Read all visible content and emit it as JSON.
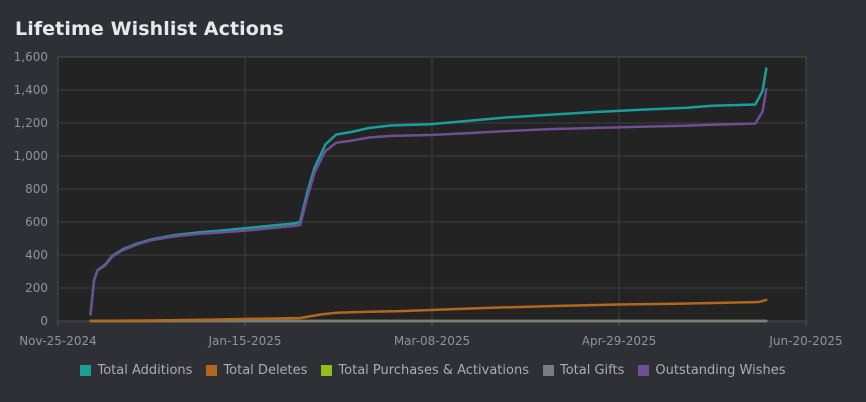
{
  "title": "Lifetime Wishlist Actions",
  "chart_data": {
    "type": "line",
    "title": "Lifetime Wishlist Actions",
    "xlabel": "",
    "ylabel": "",
    "x_type": "date",
    "xlim": [
      "2024-11-25",
      "2025-06-20"
    ],
    "ylim": [
      0,
      1600
    ],
    "x_ticks": [
      "Nov-25-2024",
      "Jan-15-2025",
      "Mar-08-2025",
      "Apr-29-2025",
      "Jun-20-2025"
    ],
    "y_ticks": [
      "0",
      "200",
      "400",
      "600",
      "800",
      "1,000",
      "1,200",
      "1,400",
      "1,600"
    ],
    "grid": true,
    "legend_position": "bottom",
    "series": [
      {
        "name": "Total Additions",
        "color": "#1a9e9a",
        "points": [
          [
            "2024-12-04",
            40
          ],
          [
            "2024-12-05",
            250
          ],
          [
            "2024-12-06",
            310
          ],
          [
            "2024-12-08",
            340
          ],
          [
            "2024-12-10",
            395
          ],
          [
            "2024-12-13",
            435
          ],
          [
            "2024-12-17",
            470
          ],
          [
            "2024-12-21",
            495
          ],
          [
            "2024-12-27",
            520
          ],
          [
            "2025-01-03",
            537
          ],
          [
            "2025-01-10",
            550
          ],
          [
            "2025-01-17",
            565
          ],
          [
            "2025-01-24",
            580
          ],
          [
            "2025-01-29",
            590
          ],
          [
            "2025-01-31",
            600
          ],
          [
            "2025-02-02",
            780
          ],
          [
            "2025-02-04",
            930
          ],
          [
            "2025-02-07",
            1070
          ],
          [
            "2025-02-10",
            1130
          ],
          [
            "2025-02-14",
            1145
          ],
          [
            "2025-02-19",
            1170
          ],
          [
            "2025-02-25",
            1185
          ],
          [
            "2025-03-08",
            1193
          ],
          [
            "2025-03-18",
            1212
          ],
          [
            "2025-03-28",
            1232
          ],
          [
            "2025-04-10",
            1250
          ],
          [
            "2025-04-22",
            1266
          ],
          [
            "2025-05-05",
            1280
          ],
          [
            "2025-05-18",
            1292
          ],
          [
            "2025-05-25",
            1305
          ],
          [
            "2025-06-06",
            1312
          ],
          [
            "2025-06-08",
            1395
          ],
          [
            "2025-06-09",
            1530
          ]
        ]
      },
      {
        "name": "Total Deletes",
        "color": "#b3671d",
        "points": [
          [
            "2024-12-04",
            0
          ],
          [
            "2024-12-20",
            3
          ],
          [
            "2025-01-05",
            8
          ],
          [
            "2025-01-20",
            14
          ],
          [
            "2025-01-31",
            18
          ],
          [
            "2025-02-06",
            40
          ],
          [
            "2025-02-10",
            50
          ],
          [
            "2025-02-18",
            55
          ],
          [
            "2025-02-28",
            60
          ],
          [
            "2025-03-10",
            68
          ],
          [
            "2025-03-25",
            80
          ],
          [
            "2025-04-10",
            90
          ],
          [
            "2025-04-29",
            100
          ],
          [
            "2025-05-15",
            105
          ],
          [
            "2025-06-01",
            112
          ],
          [
            "2025-06-07",
            115
          ],
          [
            "2025-06-09",
            128
          ]
        ]
      },
      {
        "name": "Total Purchases & Activations",
        "color": "#8fbf1a",
        "points": [
          [
            "2024-12-04",
            0
          ],
          [
            "2025-06-09",
            0
          ]
        ]
      },
      {
        "name": "Total Gifts",
        "color": "#7a7d80",
        "points": [
          [
            "2024-12-04",
            0
          ],
          [
            "2025-06-09",
            0
          ]
        ]
      },
      {
        "name": "Outstanding Wishes",
        "color": "#6e4f94",
        "points": [
          [
            "2024-12-04",
            40
          ],
          [
            "2024-12-05",
            250
          ],
          [
            "2024-12-06",
            308
          ],
          [
            "2024-12-08",
            336
          ],
          [
            "2024-12-10",
            390
          ],
          [
            "2024-12-13",
            430
          ],
          [
            "2024-12-17",
            465
          ],
          [
            "2024-12-21",
            490
          ],
          [
            "2024-12-27",
            512
          ],
          [
            "2025-01-03",
            528
          ],
          [
            "2025-01-10",
            538
          ],
          [
            "2025-01-17",
            550
          ],
          [
            "2025-01-24",
            565
          ],
          [
            "2025-01-29",
            575
          ],
          [
            "2025-01-31",
            582
          ],
          [
            "2025-02-02",
            750
          ],
          [
            "2025-02-04",
            900
          ],
          [
            "2025-02-07",
            1030
          ],
          [
            "2025-02-10",
            1080
          ],
          [
            "2025-02-14",
            1092
          ],
          [
            "2025-02-19",
            1112
          ],
          [
            "2025-02-25",
            1122
          ],
          [
            "2025-03-08",
            1127
          ],
          [
            "2025-03-18",
            1138
          ],
          [
            "2025-03-28",
            1150
          ],
          [
            "2025-04-10",
            1163
          ],
          [
            "2025-04-22",
            1170
          ],
          [
            "2025-05-05",
            1177
          ],
          [
            "2025-05-18",
            1184
          ],
          [
            "2025-05-25",
            1190
          ],
          [
            "2025-06-06",
            1197
          ],
          [
            "2025-06-08",
            1270
          ],
          [
            "2025-06-09",
            1405
          ]
        ]
      }
    ]
  }
}
